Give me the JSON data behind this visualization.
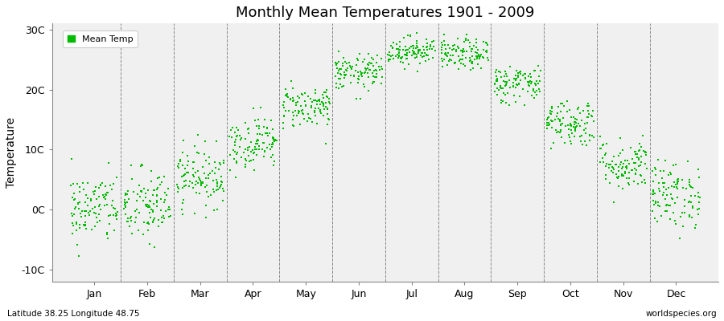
{
  "title": "Monthly Mean Temperatures 1901 - 2009",
  "ylabel": "Temperature",
  "xlabel_months": [
    "Jan",
    "Feb",
    "Mar",
    "Apr",
    "May",
    "Jun",
    "Jul",
    "Aug",
    "Sep",
    "Oct",
    "Nov",
    "Dec"
  ],
  "yticks": [
    -10,
    0,
    10,
    20,
    30
  ],
  "ytick_labels": [
    "-10C",
    "0C",
    "10C",
    "20C",
    "30C"
  ],
  "ylim": [
    -12,
    31
  ],
  "xlim": [
    -0.3,
    12.3
  ],
  "legend_label": "Mean Temp",
  "marker_color": "#00BB00",
  "bg_color": "#F0F0F0",
  "fig_color": "#FFFFFF",
  "bottom_left": "Latitude 38.25 Longitude 48.75",
  "bottom_right": "worldspecies.org",
  "n_years": 109,
  "monthly_means": [
    0.2,
    0.5,
    5.5,
    11.2,
    17.2,
    22.8,
    26.5,
    25.8,
    21.0,
    14.5,
    7.5,
    2.5
  ],
  "monthly_stds": [
    3.0,
    3.2,
    2.5,
    2.2,
    1.8,
    1.5,
    1.2,
    1.3,
    1.6,
    2.0,
    2.2,
    2.8
  ],
  "seed": 42,
  "marker_size": 4,
  "title_fontsize": 13,
  "axis_fontsize": 9,
  "ylabel_fontsize": 10
}
